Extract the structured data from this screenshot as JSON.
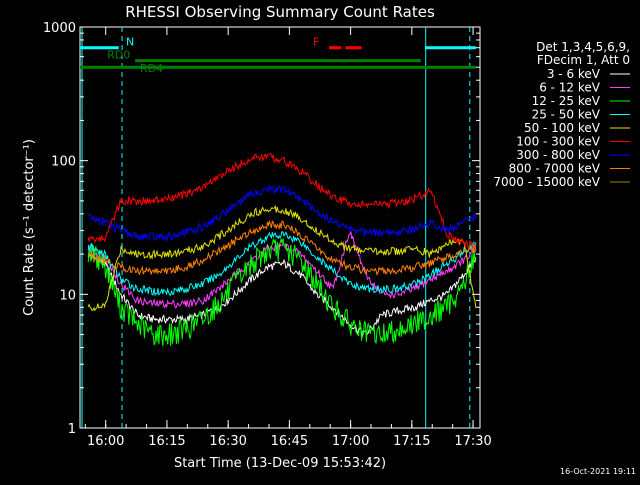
{
  "chart_data": {
    "type": "line",
    "title": "RHESSI Observing Summary Count Rates",
    "xlabel": "Start Time (13-Dec-09 15:53:42)",
    "ylabel": "Count Rate (s⁻¹ detector⁻¹)",
    "y_scale": "log",
    "ylim": [
      1,
      1000
    ],
    "x_unit": "minutes after 15:53:42",
    "xlim": [
      0,
      98
    ],
    "x_ticks": [
      {
        "value": 6.3,
        "label": "16:00"
      },
      {
        "value": 21.3,
        "label": "16:15"
      },
      {
        "value": 36.3,
        "label": "16:30"
      },
      {
        "value": 51.3,
        "label": "16:45"
      },
      {
        "value": 66.3,
        "label": "17:00"
      },
      {
        "value": 81.3,
        "label": "17:15"
      },
      {
        "value": 96.3,
        "label": "17:30"
      }
    ],
    "y_ticks": [
      {
        "value": 1,
        "label": "1"
      },
      {
        "value": 10,
        "label": "10"
      },
      {
        "value": 100,
        "label": "100"
      },
      {
        "value": 1000,
        "label": "1000"
      }
    ],
    "grid": false,
    "legend_position": "right",
    "legend_header": [
      "Det 1,3,4,5,6,9,",
      "FDecim 1, Att 0"
    ],
    "series": [
      {
        "name": "3 - 6 keV",
        "color": "#ffffff",
        "x": [
          2,
          6,
          10,
          14,
          18,
          22,
          26,
          30,
          34,
          38,
          42,
          46,
          50,
          54,
          58,
          62,
          66,
          70,
          74,
          78,
          82,
          86,
          90,
          94,
          97
        ],
        "y": [
          20,
          17,
          10,
          7,
          6.5,
          6.5,
          6.5,
          7,
          8,
          10,
          13,
          16,
          17,
          14,
          10,
          8,
          6,
          5,
          7,
          7.5,
          8,
          9,
          10,
          14,
          18
        ]
      },
      {
        "name": "6 - 12 keV",
        "color": "#ff40ff",
        "x": [
          2,
          6,
          10,
          14,
          18,
          22,
          26,
          30,
          34,
          38,
          42,
          46,
          50,
          54,
          58,
          62,
          66,
          70,
          74,
          78,
          82,
          86,
          90,
          94,
          97
        ],
        "y": [
          22,
          19,
          12,
          9,
          8.5,
          8.5,
          8.5,
          9,
          11,
          14,
          18,
          22,
          23,
          20,
          15,
          11,
          30,
          14,
          10,
          10,
          11,
          13,
          15,
          18,
          21
        ]
      },
      {
        "name": "12 - 25 keV",
        "color": "#00ff00",
        "x": [
          2,
          6,
          10,
          14,
          18,
          22,
          26,
          30,
          34,
          38,
          42,
          46,
          50,
          54,
          58,
          62,
          66,
          70,
          74,
          78,
          82,
          86,
          90,
          94,
          97
        ],
        "y": [
          21,
          17,
          8,
          6,
          5,
          5,
          5.5,
          6.5,
          8.5,
          12,
          17,
          21,
          22,
          18,
          12,
          8,
          6,
          5,
          5,
          5.5,
          6,
          7,
          8,
          12,
          20
        ]
      },
      {
        "name": "25 - 50 keV",
        "color": "#00ffff",
        "x": [
          2,
          6,
          10,
          14,
          18,
          22,
          26,
          30,
          34,
          38,
          42,
          46,
          50,
          54,
          58,
          62,
          66,
          70,
          74,
          78,
          82,
          86,
          90,
          94,
          97
        ],
        "y": [
          23,
          20,
          13,
          11,
          10.5,
          10.5,
          11,
          12,
          14,
          18,
          23,
          27,
          28,
          25,
          19,
          15,
          12,
          11,
          11,
          11,
          12,
          14,
          17,
          21,
          24
        ]
      },
      {
        "name": "50 - 100 keV",
        "color": "#e0e000",
        "x": [
          2,
          6,
          10,
          14,
          18,
          22,
          26,
          30,
          34,
          38,
          42,
          46,
          50,
          54,
          58,
          62,
          66,
          70,
          74,
          78,
          82,
          86,
          90,
          94,
          97
        ],
        "y": [
          8,
          8,
          22,
          20,
          20,
          20,
          21,
          23,
          27,
          33,
          40,
          44,
          43,
          37,
          30,
          25,
          22,
          21,
          21,
          21,
          22,
          20,
          24,
          25,
          8
        ]
      },
      {
        "name": "100 - 300 keV",
        "color": "#ff0000",
        "x": [
          2,
          6,
          10,
          14,
          18,
          22,
          26,
          30,
          34,
          38,
          42,
          46,
          50,
          54,
          58,
          62,
          66,
          70,
          74,
          78,
          82,
          86,
          90,
          94,
          97
        ],
        "y": [
          26,
          26,
          50,
          50,
          50,
          52,
          56,
          63,
          75,
          90,
          104,
          108,
          100,
          84,
          66,
          53,
          48,
          47,
          47,
          48,
          52,
          60,
          28,
          24,
          23
        ]
      },
      {
        "name": "300 - 800 keV",
        "color": "#0000ff",
        "x": [
          2,
          6,
          10,
          14,
          18,
          22,
          26,
          30,
          34,
          38,
          42,
          46,
          50,
          54,
          58,
          62,
          66,
          70,
          74,
          78,
          82,
          86,
          90,
          94,
          97
        ],
        "y": [
          38,
          35,
          30,
          27,
          27,
          27,
          29,
          32,
          38,
          47,
          56,
          62,
          60,
          52,
          42,
          35,
          31,
          29,
          29,
          29,
          31,
          34,
          30,
          34,
          38
        ]
      },
      {
        "name": "800 - 7000 keV",
        "color": "#ff8000",
        "x": [
          2,
          6,
          10,
          14,
          18,
          22,
          26,
          30,
          34,
          38,
          42,
          46,
          50,
          54,
          58,
          62,
          66,
          70,
          74,
          78,
          82,
          86,
          90,
          94,
          97
        ],
        "y": [
          20,
          18,
          16,
          15,
          15,
          15,
          16,
          18,
          21,
          25,
          30,
          33,
          33,
          28,
          22,
          18,
          16,
          15,
          15,
          15,
          16,
          17,
          19,
          21,
          22
        ]
      },
      {
        "name": "7000 - 15000 keV",
        "color": "#a08000",
        "x": [],
        "y": []
      }
    ],
    "state_lines": [
      {
        "label": "N",
        "color": "#00ffff",
        "y": 700,
        "segments": [
          [
            0,
            9.5
          ],
          [
            84.5,
            97
          ]
        ]
      },
      {
        "label": "RD0",
        "color": "#008000",
        "y": 560,
        "segments": [
          [
            13.5,
            83.5
          ]
        ]
      },
      {
        "label": "RD4",
        "color": "#008000",
        "y": 500,
        "segments": [
          [
            0,
            97
          ]
        ]
      },
      {
        "label": "F",
        "color": "#ff0000",
        "y": 700,
        "segments": [
          [
            61,
            64
          ],
          [
            65,
            69
          ]
        ]
      }
    ],
    "cyan_verticals": [
      0.5,
      10.3,
      84.7,
      95.5
    ],
    "timestamp": "16-Oct-2021 19:11"
  }
}
